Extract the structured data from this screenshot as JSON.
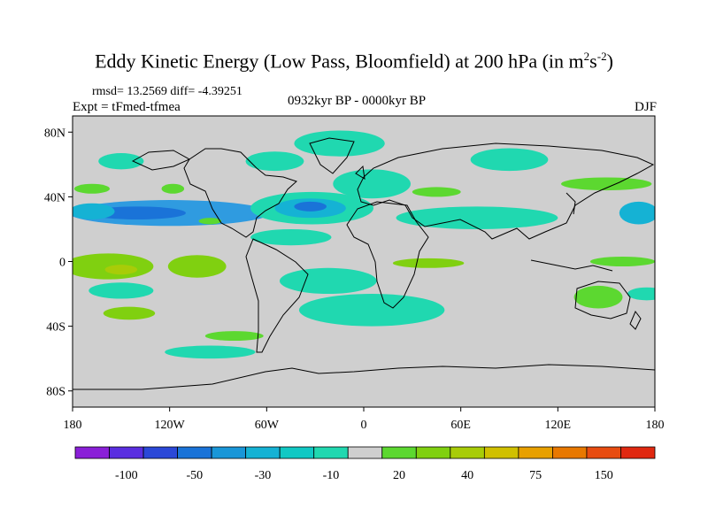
{
  "title": {
    "main": "Eddy Kinetic Energy (Low Pass, Bloomfield) at 200 hPa (in m",
    "exp1": "2",
    "mid": "s",
    "exp2": "-2",
    "close": ")"
  },
  "subtitle": {
    "stats": "rmsd= 13.2569 diff= -4.39251",
    "experiment": "Expt = tFmed-tfmea",
    "period": "0932kyr BP - 0000kyr BP",
    "season": "DJF"
  },
  "chart_data": {
    "type": "heatmap",
    "variable": "Eddy Kinetic Energy difference",
    "units": "m^2 s^-2",
    "x_ticks": [
      {
        "value": -180,
        "label": "180"
      },
      {
        "value": -120,
        "label": "120W"
      },
      {
        "value": -60,
        "label": "60W"
      },
      {
        "value": 0,
        "label": "0"
      },
      {
        "value": 60,
        "label": "60E"
      },
      {
        "value": 120,
        "label": "120E"
      },
      {
        "value": 180,
        "label": "180"
      }
    ],
    "y_ticks": [
      {
        "value": 80,
        "label": "80N"
      },
      {
        "value": 40,
        "label": "40N"
      },
      {
        "value": 0,
        "label": "0"
      },
      {
        "value": -40,
        "label": "40S"
      },
      {
        "value": -80,
        "label": "80S"
      }
    ],
    "xlim": [
      -180,
      180
    ],
    "ylim": [
      -90,
      90
    ],
    "colorbar": {
      "levels": [
        "",
        "-100",
        "",
        "-50",
        "",
        "-30",
        "",
        "-10",
        "",
        "20",
        "",
        "40",
        "",
        "75",
        "",
        "150",
        ""
      ],
      "label_positions": [
        -100,
        -50,
        -30,
        -10,
        20,
        40,
        75,
        150
      ],
      "colors": [
        "#8a1fd8",
        "#5a2ee0",
        "#2b48d8",
        "#1a73d8",
        "#1996d8",
        "#15b2d4",
        "#10c8c4",
        "#20d8b0",
        "#cfcfcf",
        "#5cd830",
        "#80d010",
        "#a8cc08",
        "#d0c000",
        "#e8a000",
        "#e87800",
        "#e84c10",
        "#e02810"
      ]
    },
    "background_color": "#cfcfcf",
    "anomalies": [
      {
        "lon": -120,
        "lat": 30,
        "rx": 62,
        "ry": 8,
        "value": -40,
        "color": "#2f9be0"
      },
      {
        "lon": -140,
        "lat": 30,
        "rx": 30,
        "ry": 4,
        "value": -60,
        "color": "#1a73d8"
      },
      {
        "lon": -168,
        "lat": 31,
        "rx": 14,
        "ry": 5,
        "value": -30,
        "color": "#15b2d4"
      },
      {
        "lon": -32,
        "lat": 33,
        "rx": 38,
        "ry": 10,
        "value": -20,
        "color": "#20d8b0"
      },
      {
        "lon": -33,
        "lat": 33,
        "rx": 22,
        "ry": 6,
        "value": -35,
        "color": "#15b2d4"
      },
      {
        "lon": -33,
        "lat": 34,
        "rx": 10,
        "ry": 3,
        "value": -50,
        "color": "#1a73d8"
      },
      {
        "lon": -45,
        "lat": 15,
        "rx": 25,
        "ry": 5,
        "value": -10,
        "color": "#20d8b0"
      },
      {
        "lon": 70,
        "lat": 27,
        "rx": 50,
        "ry": 7,
        "value": -15,
        "color": "#20d8b0"
      },
      {
        "lon": 170,
        "lat": 30,
        "rx": 12,
        "ry": 7,
        "value": -25,
        "color": "#15b2d4"
      },
      {
        "lon": -15,
        "lat": 73,
        "rx": 28,
        "ry": 8,
        "value": -10,
        "color": "#20d8b0"
      },
      {
        "lon": -55,
        "lat": 62,
        "rx": 18,
        "ry": 6,
        "value": -10,
        "color": "#20d8b0"
      },
      {
        "lon": 90,
        "lat": 63,
        "rx": 24,
        "ry": 7,
        "value": -10,
        "color": "#20d8b0"
      },
      {
        "lon": -150,
        "lat": 62,
        "rx": 14,
        "ry": 5,
        "value": -10,
        "color": "#20d8b0"
      },
      {
        "lon": 5,
        "lat": 48,
        "rx": 24,
        "ry": 9,
        "value": -10,
        "color": "#20d8b0"
      },
      {
        "lon": -22,
        "lat": -12,
        "rx": 30,
        "ry": 8,
        "value": -12,
        "color": "#20d8b0"
      },
      {
        "lon": 5,
        "lat": -30,
        "rx": 45,
        "ry": 10,
        "value": -12,
        "color": "#20d8b0"
      },
      {
        "lon": -150,
        "lat": -18,
        "rx": 20,
        "ry": 5,
        "value": -10,
        "color": "#20d8b0"
      },
      {
        "lon": -95,
        "lat": -56,
        "rx": 28,
        "ry": 4,
        "value": -10,
        "color": "#20d8b0"
      },
      {
        "lon": 175,
        "lat": -20,
        "rx": 12,
        "ry": 4,
        "value": -10,
        "color": "#20d8b0"
      },
      {
        "lon": -158,
        "lat": -3,
        "rx": 28,
        "ry": 8,
        "value": 25,
        "color": "#80d010"
      },
      {
        "lon": -150,
        "lat": -5,
        "rx": 10,
        "ry": 3,
        "value": 45,
        "color": "#a8cc08"
      },
      {
        "lon": -103,
        "lat": -3,
        "rx": 18,
        "ry": 7,
        "value": 25,
        "color": "#80d010"
      },
      {
        "lon": -145,
        "lat": -32,
        "rx": 16,
        "ry": 4,
        "value": 25,
        "color": "#80d010"
      },
      {
        "lon": 40,
        "lat": -1,
        "rx": 22,
        "ry": 3,
        "value": 22,
        "color": "#80d010"
      },
      {
        "lon": 145,
        "lat": -22,
        "rx": 15,
        "ry": 7,
        "value": 22,
        "color": "#5cd830"
      },
      {
        "lon": 160,
        "lat": 0,
        "rx": 20,
        "ry": 3,
        "value": 22,
        "color": "#5cd830"
      },
      {
        "lon": 150,
        "lat": 48,
        "rx": 28,
        "ry": 4,
        "value": 22,
        "color": "#5cd830"
      },
      {
        "lon": 45,
        "lat": 43,
        "rx": 15,
        "ry": 3,
        "value": 22,
        "color": "#5cd830"
      },
      {
        "lon": -168,
        "lat": 45,
        "rx": 11,
        "ry": 3,
        "value": 22,
        "color": "#5cd830"
      },
      {
        "lon": -118,
        "lat": 45,
        "rx": 7,
        "ry": 3,
        "value": 22,
        "color": "#5cd830"
      },
      {
        "lon": -95,
        "lat": 25,
        "rx": 7,
        "ry": 2,
        "value": 22,
        "color": "#5cd830"
      },
      {
        "lon": -80,
        "lat": -46,
        "rx": 18,
        "ry": 3,
        "value": 22,
        "color": "#5cd830"
      }
    ]
  }
}
